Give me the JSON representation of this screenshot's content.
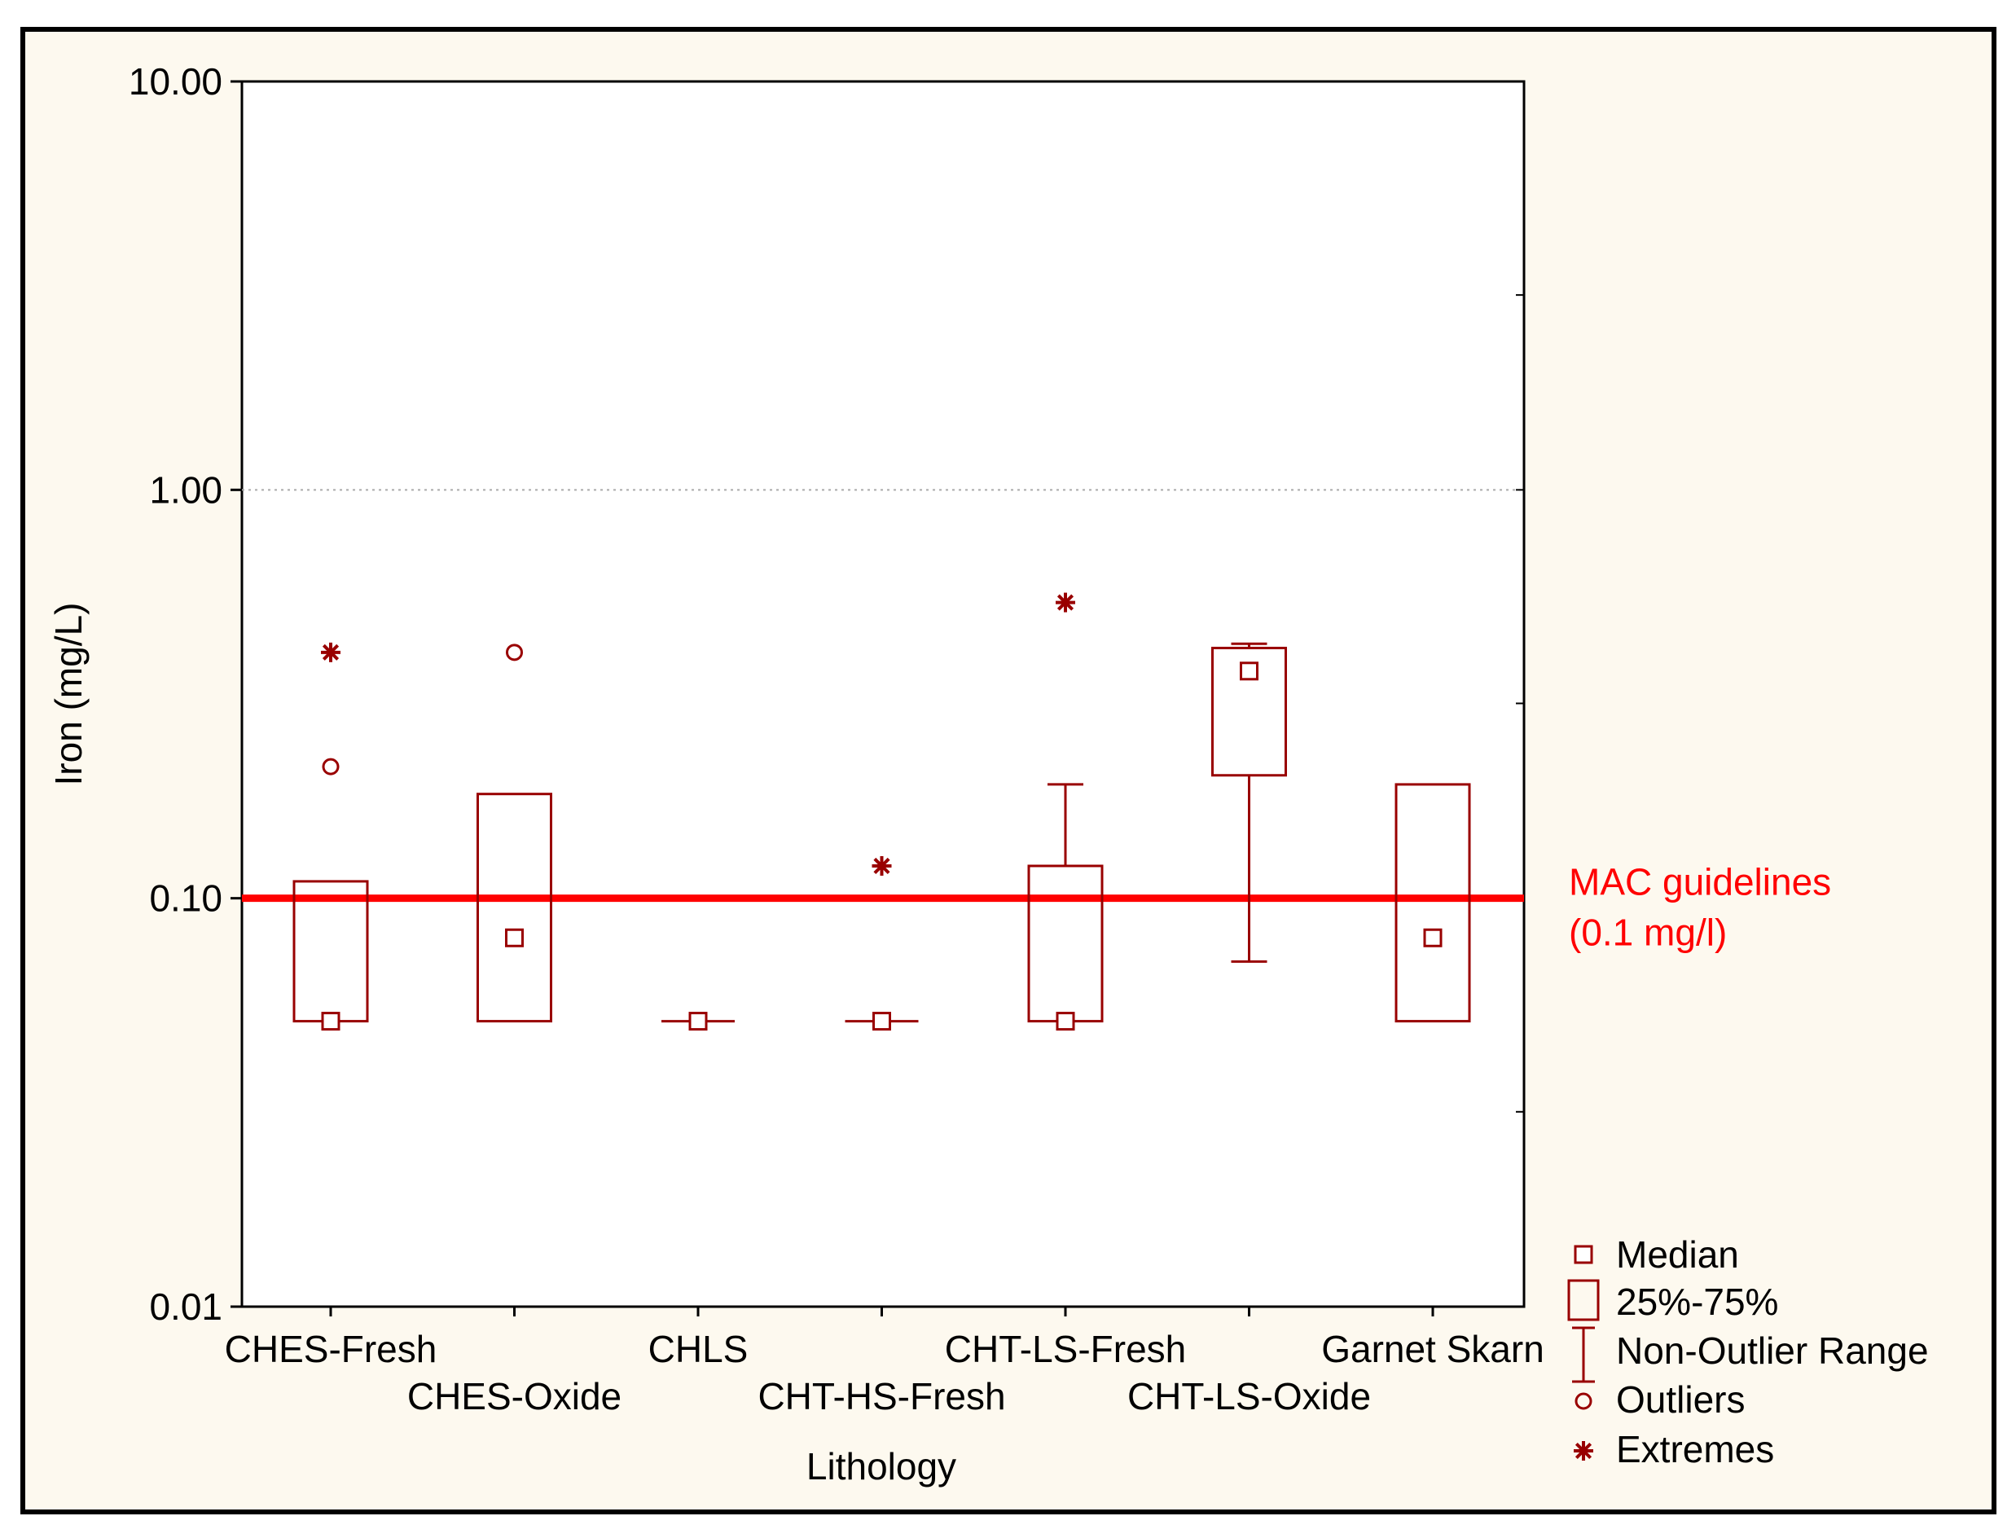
{
  "chart_data": {
    "type": "box",
    "title": "",
    "xlabel": "Lithology",
    "ylabel": "Iron (mg/L)",
    "yscale": "log",
    "ylim": [
      0.01,
      10
    ],
    "yticks": [
      {
        "value": 10,
        "label": "10.00"
      },
      {
        "value": 1,
        "label": "1.00"
      },
      {
        "value": 0.1,
        "label": "0.10"
      },
      {
        "value": 0.01,
        "label": "0.01"
      }
    ],
    "categories": [
      "CHES-Fresh",
      "CHES-Oxide",
      "CHLS",
      "CHT-HS-Fresh",
      "CHT-LS-Fresh",
      "CHT-LS-Oxide",
      "Garnet Skarn"
    ],
    "series": [
      {
        "name": "CHES-Fresh",
        "q1": 0.05,
        "median": 0.05,
        "q3": 0.11,
        "whisker_low": 0.05,
        "whisker_high": 0.11,
        "outliers": [
          0.21
        ],
        "extremes": [
          0.4
        ]
      },
      {
        "name": "CHES-Oxide",
        "q1": 0.05,
        "median": 0.08,
        "q3": 0.18,
        "whisker_low": 0.05,
        "whisker_high": 0.18,
        "outliers": [
          0.4
        ],
        "extremes": []
      },
      {
        "name": "CHLS",
        "q1": 0.05,
        "median": 0.05,
        "q3": 0.05,
        "whisker_low": 0.05,
        "whisker_high": 0.05,
        "outliers": [],
        "extremes": []
      },
      {
        "name": "CHT-HS-Fresh",
        "q1": 0.05,
        "median": 0.05,
        "q3": 0.05,
        "whisker_low": 0.05,
        "whisker_high": 0.05,
        "outliers": [],
        "extremes": [
          0.12
        ]
      },
      {
        "name": "CHT-LS-Fresh",
        "q1": 0.05,
        "median": 0.05,
        "q3": 0.12,
        "whisker_low": 0.05,
        "whisker_high": 0.19,
        "outliers": [],
        "extremes": [
          0.53
        ]
      },
      {
        "name": "CHT-LS-Oxide",
        "q1": 0.2,
        "median": 0.36,
        "q3": 0.41,
        "whisker_low": 0.07,
        "whisker_high": 0.42,
        "outliers": [],
        "extremes": []
      },
      {
        "name": "Garnet Skarn",
        "q1": 0.05,
        "median": 0.08,
        "q3": 0.19,
        "whisker_low": 0.05,
        "whisker_high": 0.19,
        "outliers": [],
        "extremes": []
      }
    ],
    "reference_line": {
      "value": 0.1,
      "label_line1": "MAC guidelines",
      "label_line2": "(0.1 mg/l)",
      "color": "#ff0000"
    },
    "legend": {
      "placement": "bottom-right",
      "entries": [
        "Median",
        "25%-75%",
        "Non-Outlier Range",
        "Outliers",
        "Extremes"
      ]
    },
    "colors": {
      "box": "#990000",
      "background": "#fdf9ef",
      "frame": "#000000",
      "grid": "#aaaaaa"
    }
  }
}
